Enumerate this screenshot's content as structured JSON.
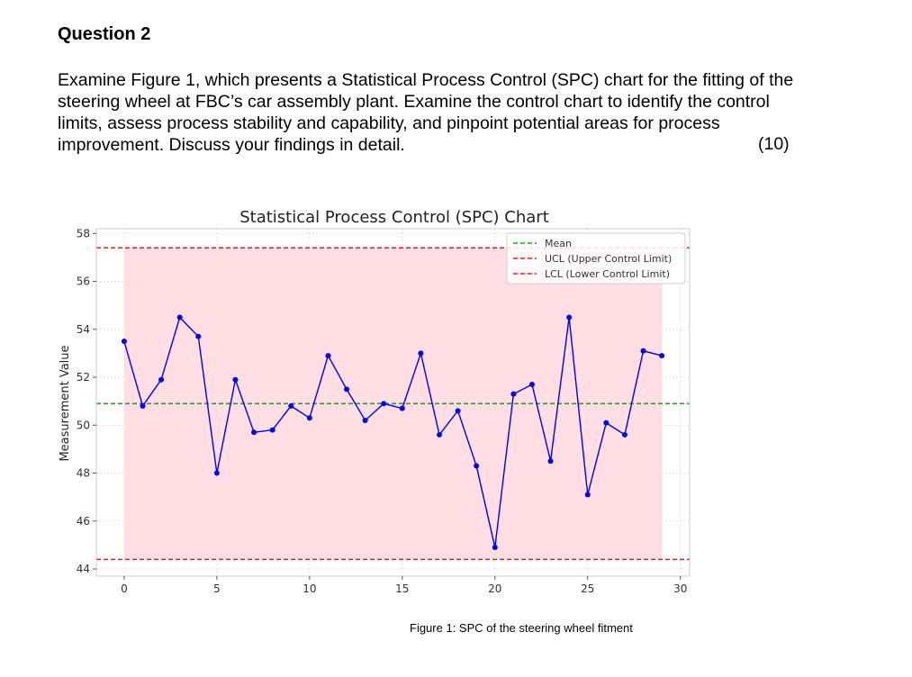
{
  "question": {
    "heading": "Question 2",
    "body": "Examine Figure 1, which presents a Statistical Process Control (SPC) chart for the fitting of the steering wheel at FBC’s car assembly plant. Examine the control chart to identify the control limits, assess process stability and capability, and pinpoint potential areas for process improvement. Discuss your findings in detail.",
    "marks": "(10)"
  },
  "figure_caption": "Figure 1: SPC of the steering wheel fitment",
  "chart_data": {
    "type": "line",
    "title": "Statistical Process Control (SPC) Chart",
    "xlabel": "",
    "ylabel": "Measurement Value",
    "x": [
      0,
      1,
      2,
      3,
      4,
      5,
      6,
      7,
      8,
      9,
      10,
      11,
      12,
      13,
      14,
      15,
      16,
      17,
      18,
      19,
      20,
      21,
      22,
      23,
      24,
      25,
      26,
      27,
      28,
      29
    ],
    "series": [
      {
        "name": "Measurement",
        "color": "#0000ee",
        "values": [
          53.5,
          50.8,
          51.9,
          54.5,
          53.7,
          48.0,
          51.9,
          49.7,
          49.8,
          50.8,
          50.3,
          52.9,
          51.5,
          50.2,
          50.9,
          50.7,
          53.0,
          49.6,
          50.6,
          48.3,
          44.9,
          51.3,
          51.7,
          48.5,
          54.5,
          47.1,
          50.1,
          49.6,
          53.1,
          52.9
        ]
      }
    ],
    "mean": 50.9,
    "ucl": 57.4,
    "lcl": 44.4,
    "xlim": [
      -1.5,
      30.5
    ],
    "ylim": [
      43.7,
      58.2
    ],
    "xticks": [
      0,
      5,
      10,
      15,
      20,
      25,
      30
    ],
    "yticks": [
      44,
      46,
      48,
      50,
      52,
      54,
      56,
      58
    ],
    "shaded_band": {
      "from_x": 0,
      "to_x": 29,
      "color": "#ffdfe3"
    },
    "grid": true,
    "legend": {
      "position": "top-right",
      "entries": [
        {
          "label": "Mean",
          "color": "#2a9d2a"
        },
        {
          "label": "UCL (Upper Control Limit)",
          "color": "#dd2222"
        },
        {
          "label": "LCL (Lower Control Limit)",
          "color": "#dd2222"
        }
      ]
    }
  }
}
